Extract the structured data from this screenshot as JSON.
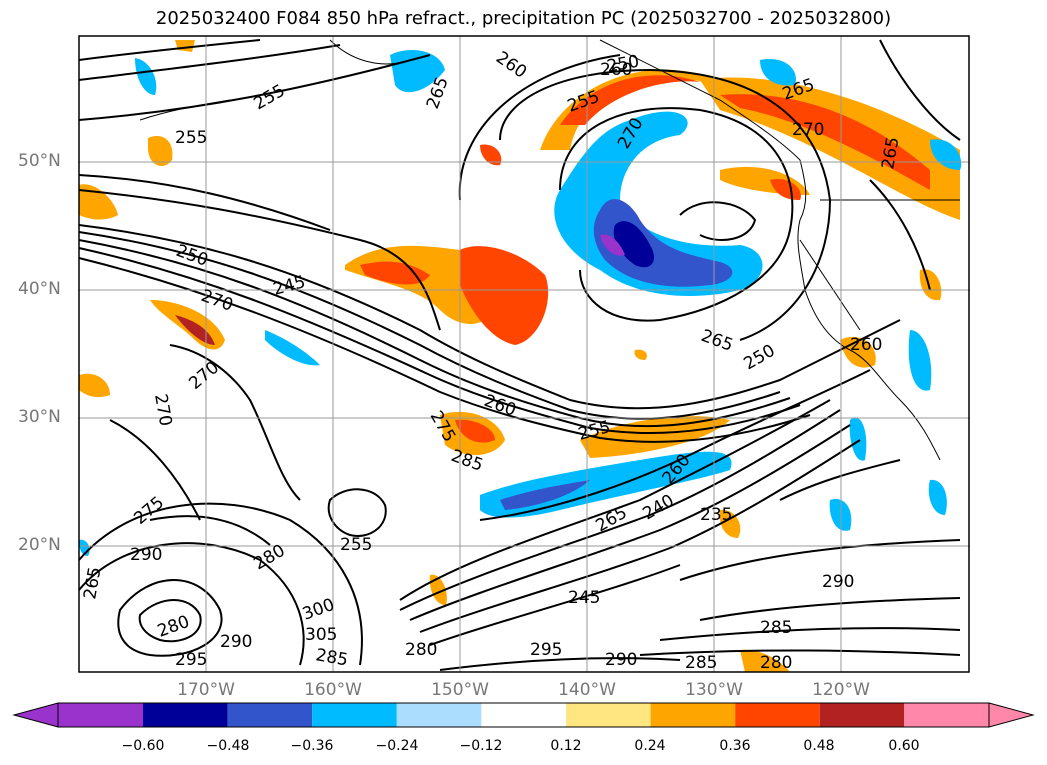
{
  "title": "2025032400 F084 850 hPa refract., precipitation PC (2025032700 - 2025032800)",
  "map": {
    "lat_ticks": [
      "50°N",
      "40°N",
      "30°N",
      "20°N"
    ],
    "lon_ticks": [
      "170°W",
      "160°W",
      "150°W",
      "140°W",
      "130°W",
      "120°W"
    ],
    "contour_labels": [
      "260",
      "255",
      "265",
      "260",
      "250",
      "255",
      "265",
      "270",
      "270",
      "265",
      "255",
      "250",
      "245",
      "270",
      "270",
      "270",
      "260",
      "275",
      "285",
      "255",
      "265",
      "260",
      "265",
      "250",
      "240",
      "235",
      "290",
      "275",
      "290",
      "280",
      "255",
      "245",
      "285",
      "265",
      "280",
      "290",
      "295",
      "300",
      "305",
      "285",
      "280",
      "295",
      "290",
      "285",
      "280",
      "260"
    ]
  },
  "colorbar": {
    "ticks": [
      "−0.60",
      "−0.48",
      "−0.36",
      "−0.24",
      "−0.12",
      "0.12",
      "0.24",
      "0.36",
      "0.48",
      "0.60"
    ],
    "colors": [
      "#9933cc",
      "#000099",
      "#3355cc",
      "#00bbff",
      "#aaddff",
      "#ffffff",
      "#ffe680",
      "#ffa500",
      "#ff4500",
      "#b22222",
      "#ff88aa"
    ]
  }
}
